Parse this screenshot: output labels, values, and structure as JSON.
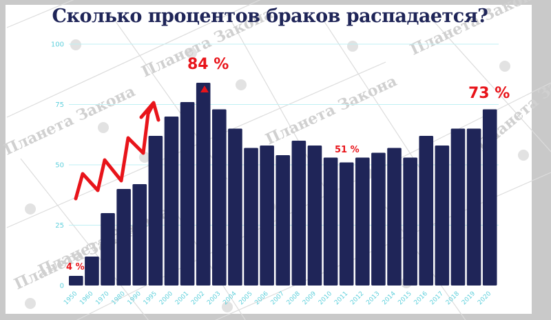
{
  "title": "Сколько процентов браков распадается?",
  "watermark": "Планета Закона",
  "colors": {
    "bar": "#1f2558",
    "grid": "#bff0f4",
    "tick": "#5fd0dc",
    "annotation": "#e8141a",
    "title": "#1f2558"
  },
  "annotations": {
    "first": "4 %",
    "peak": "84 %",
    "mid": "51 %",
    "last": "73 %"
  },
  "chart_data": {
    "type": "bar",
    "title": "Сколько процентов браков распадается?",
    "xlabel": "",
    "ylabel": "",
    "ylim": [
      0,
      100
    ],
    "yticks": [
      0,
      25,
      50,
      75,
      100
    ],
    "grid": true,
    "legend": null,
    "categories": [
      "1950",
      "1960",
      "1970",
      "1980",
      "1990",
      "1995",
      "2000",
      "2001",
      "2002",
      "2003",
      "2004",
      "2005",
      "2006",
      "2007",
      "2008",
      "2009",
      "2010",
      "2011",
      "2012",
      "2013",
      "2014",
      "2015",
      "2016",
      "2017",
      "2018",
      "2019",
      "2020"
    ],
    "values": [
      4,
      12,
      30,
      40,
      42,
      62,
      70,
      76,
      84,
      73,
      65,
      57,
      58,
      54,
      60,
      58,
      53,
      51,
      53,
      55,
      57,
      53,
      62,
      58,
      65,
      65,
      73
    ],
    "annotations": [
      {
        "category": "1950",
        "text": "4 %"
      },
      {
        "category": "2002",
        "text": "84 %",
        "marker": "red-triangle"
      },
      {
        "category": "2011",
        "text": "51 %"
      },
      {
        "category": "2020",
        "text": "73 %"
      }
    ],
    "decorations": [
      "red zigzag upward arrow over 1950–1995"
    ]
  }
}
